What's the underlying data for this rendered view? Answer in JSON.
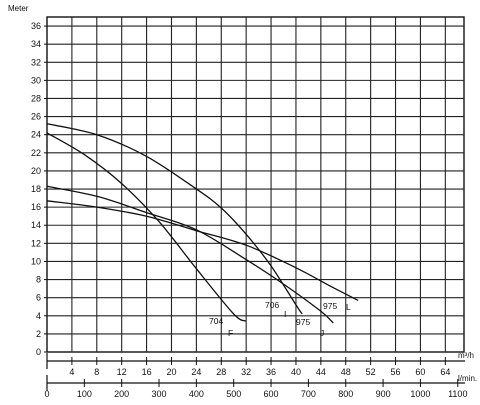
{
  "chart_data": {
    "type": "line",
    "ylabel": "Meter",
    "ylim": [
      0,
      37
    ],
    "yticks": [
      0,
      2,
      4,
      6,
      8,
      10,
      12,
      14,
      16,
      18,
      20,
      22,
      24,
      26,
      28,
      30,
      32,
      34,
      36
    ],
    "xlim_m3h": [
      0,
      67
    ],
    "xticks_m3h": [
      4,
      8,
      12,
      16,
      20,
      24,
      28,
      32,
      36,
      40,
      44,
      48,
      52,
      56,
      60,
      64
    ],
    "xunit_m3h": "m³/h",
    "xticks_lmin": [
      0,
      100,
      200,
      300,
      400,
      500,
      600,
      700,
      800,
      900,
      1000,
      1100
    ],
    "xunit_lmin": "l/min.",
    "grid": true,
    "series": [
      {
        "name": "F",
        "points": [
          [
            0,
            24.2
          ],
          [
            6,
            21.8
          ],
          [
            12,
            18.6
          ],
          [
            18,
            14.4
          ],
          [
            24,
            9.2
          ],
          [
            30,
            4.2
          ],
          [
            32,
            3.4
          ]
        ]
      },
      {
        "name": "I",
        "points": [
          [
            0,
            25.2
          ],
          [
            8,
            24.0
          ],
          [
            16,
            21.6
          ],
          [
            24,
            18.0
          ],
          [
            28,
            15.9
          ],
          [
            32,
            13.0
          ],
          [
            36,
            9.5
          ],
          [
            40,
            5.2
          ],
          [
            41,
            4.2
          ]
        ]
      },
      {
        "name": "J",
        "points": [
          [
            0,
            18.3
          ],
          [
            8,
            17.2
          ],
          [
            16,
            15.4
          ],
          [
            24,
            13.5
          ],
          [
            32,
            10.2
          ],
          [
            38,
            7.5
          ],
          [
            44,
            4.5
          ],
          [
            46,
            3.2
          ]
        ]
      },
      {
        "name": "L",
        "points": [
          [
            0,
            16.7
          ],
          [
            8,
            16.0
          ],
          [
            16,
            15.0
          ],
          [
            24,
            13.4
          ],
          [
            32,
            11.8
          ],
          [
            40,
            9.3
          ],
          [
            46,
            7.1
          ],
          [
            50,
            5.7
          ]
        ]
      }
    ],
    "annotations": [
      {
        "text": "704",
        "series": "F"
      },
      {
        "text": "F",
        "series": "F"
      },
      {
        "text": "706",
        "series": "I"
      },
      {
        "text": "I",
        "series": "I"
      },
      {
        "text": "975",
        "series": "J"
      },
      {
        "text": "J",
        "series": "J"
      },
      {
        "text": "975",
        "series": "L"
      },
      {
        "text": "L",
        "series": "L"
      }
    ]
  }
}
